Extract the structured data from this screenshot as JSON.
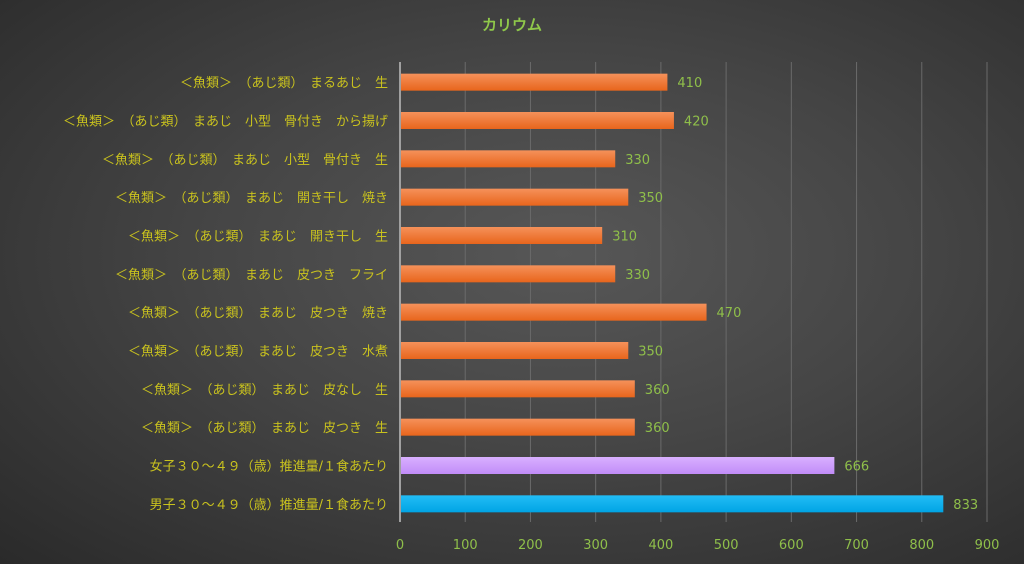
{
  "chart_data": {
    "type": "bar",
    "orientation": "horizontal",
    "title": "カリウム",
    "xlabel": "",
    "ylabel": "",
    "xlim": [
      0,
      900
    ],
    "xticks": [
      0,
      100,
      200,
      300,
      400,
      500,
      600,
      700,
      800,
      900
    ],
    "grid": true,
    "categories": [
      "＜魚類＞　（あじ類）　まるあじ　生",
      "＜魚類＞　（あじ類）　まあじ　小型　骨付き　から揚げ",
      "＜魚類＞　（あじ類）　まあじ　小型　骨付き　生",
      "＜魚類＞　（あじ類）　まあじ　開き干し　焼き",
      "＜魚類＞　（あじ類）　まあじ　開き干し　生",
      "＜魚類＞　（あじ類）　まあじ　皮つき　フライ",
      "＜魚類＞　（あじ類）　まあじ　皮つき　焼き",
      "＜魚類＞　（あじ類）　まあじ　皮つき　水煮",
      "＜魚類＞　（あじ類）　まあじ　皮なし　生",
      "＜魚類＞　（あじ類）　まあじ　皮つき　生",
      "女子３０～４９（歳）推進量/１食あたり",
      "男子３０～４９（歳）推進量/１食あたり"
    ],
    "values": [
      410,
      420,
      330,
      350,
      310,
      330,
      470,
      350,
      360,
      360,
      666,
      833
    ],
    "colors": [
      "#ef7425",
      "#ef7425",
      "#ef7425",
      "#ef7425",
      "#ef7425",
      "#ef7425",
      "#ef7425",
      "#ef7425",
      "#ef7425",
      "#ef7425",
      "#cc99ff",
      "#00b0f0"
    ]
  }
}
